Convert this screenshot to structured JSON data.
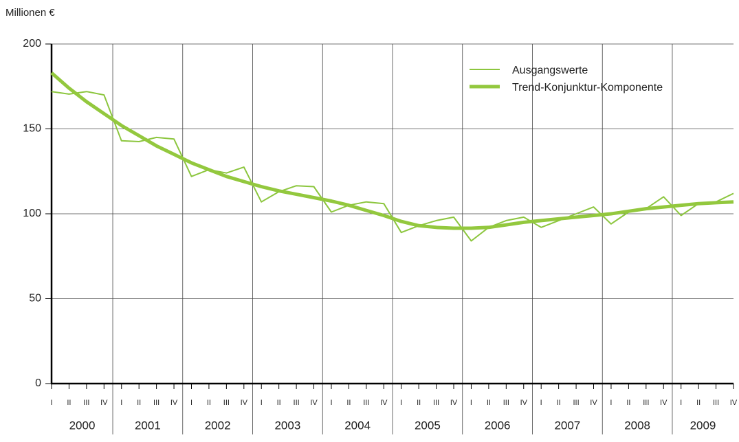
{
  "chart_data": {
    "type": "line",
    "y_axis_label": "Millionen €",
    "categories": [
      "I",
      "II",
      "III",
      "IV",
      "I",
      "II",
      "III",
      "IV",
      "I",
      "II",
      "III",
      "IV",
      "I",
      "II",
      "III",
      "IV",
      "I",
      "II",
      "III",
      "IV",
      "I",
      "II",
      "III",
      "IV",
      "I",
      "II",
      "III",
      "IV",
      "I",
      "II",
      "III",
      "IV",
      "I",
      "II",
      "III",
      "IV",
      "I",
      "II",
      "III",
      "IV"
    ],
    "years": [
      "2000",
      "2001",
      "2002",
      "2003",
      "2004",
      "2005",
      "2006",
      "2007",
      "2008",
      "2009"
    ],
    "series": [
      {
        "name": "Ausgangswerte",
        "color": "#8cc63e",
        "width": 2,
        "values": [
          172,
          170.5,
          172,
          170,
          143,
          142.5,
          145,
          144,
          122,
          126,
          124,
          127.5,
          107,
          113,
          116.5,
          116,
          101,
          105,
          107,
          106,
          89,
          93,
          96,
          98,
          84,
          92,
          96,
          98,
          92,
          96,
          100,
          104,
          94,
          101,
          103,
          110,
          99,
          106,
          107,
          112
        ]
      },
      {
        "name": "Trend-Konjunktur-Komponente",
        "color": "#93c83e",
        "width": 5,
        "values": [
          183,
          174,
          166,
          159,
          152,
          146,
          140,
          135,
          130,
          126,
          122,
          119,
          116,
          113.5,
          111.5,
          109.5,
          107.5,
          105,
          102,
          99,
          95.5,
          93,
          92,
          91.5,
          91.5,
          92,
          93.5,
          95,
          96,
          97,
          98,
          99,
          100,
          101.5,
          103,
          104,
          105,
          106,
          106.5,
          107
        ]
      }
    ],
    "ylim": [
      0,
      200
    ],
    "yticks": [
      0,
      50,
      100,
      150,
      200
    ],
    "grid": true,
    "legend": "top-right"
  }
}
